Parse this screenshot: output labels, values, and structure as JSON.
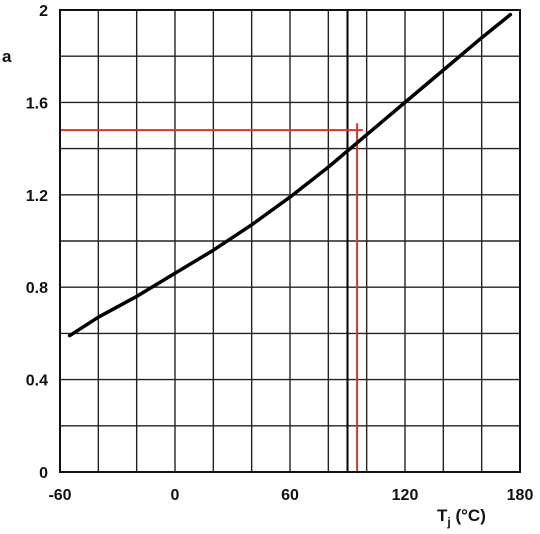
{
  "chart_data": {
    "type": "line",
    "ylabel": "a",
    "xlabel": {
      "main": "T",
      "sub": "j",
      "unit": " (°C)"
    },
    "xlim": [
      -60,
      180
    ],
    "ylim": [
      0,
      2
    ],
    "x_ticks": [
      -60,
      0,
      60,
      120,
      180
    ],
    "x_tick_labels": [
      "-60",
      "0",
      "60",
      "120",
      "180"
    ],
    "y_ticks": [
      0,
      0.4,
      0.8,
      1.2,
      1.6,
      2
    ],
    "y_tick_labels": [
      "0",
      "0.4",
      "0.8",
      "1.2",
      "1.6",
      "2"
    ],
    "x_grid_step": 20,
    "y_grid_step": 0.2,
    "grid": true,
    "series": [
      {
        "color": "#000000",
        "x": [
          -55,
          -40,
          -20,
          0,
          20,
          40,
          60,
          80,
          100,
          120,
          140,
          160,
          175
        ],
        "y": [
          0.59,
          0.67,
          0.76,
          0.86,
          0.96,
          1.07,
          1.19,
          1.32,
          1.46,
          1.6,
          1.74,
          1.88,
          1.98
        ]
      }
    ],
    "annotations": [
      {
        "type": "vline",
        "x": 90,
        "y_from": 0,
        "y_to": 2,
        "color": "#000000"
      },
      {
        "type": "vline",
        "x": 95,
        "y_from": 0,
        "y_to": 1.51,
        "color": "#d03a2a"
      },
      {
        "type": "hline",
        "y": 1.48,
        "x_from": -60,
        "x_to": 98,
        "color": "#d03a2a"
      }
    ]
  }
}
